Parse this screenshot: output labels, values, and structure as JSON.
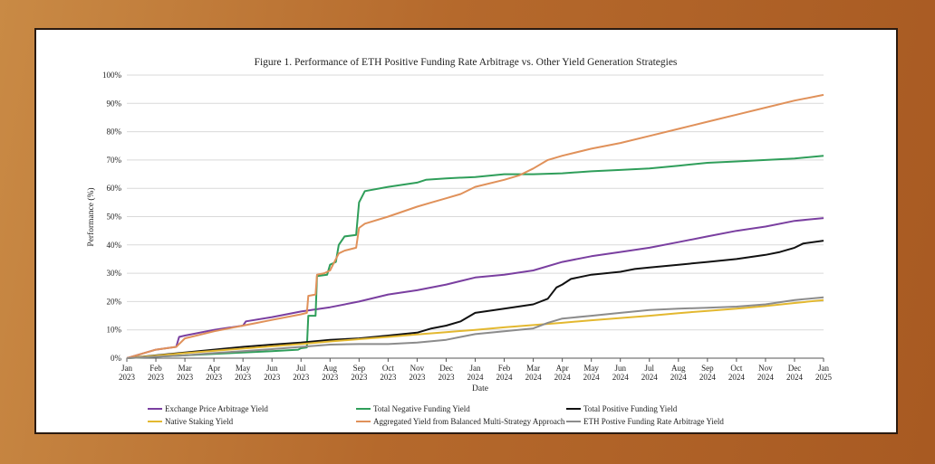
{
  "chart_data": {
    "type": "line",
    "title": "Figure 1. Performance of ETH Positive Funding Rate Arbitrage vs. Other Yield Generation Strategies",
    "xlabel": "Date",
    "ylabel": "Performance (%)",
    "ylim": [
      0,
      100
    ],
    "yticks": [
      "0%",
      "10%",
      "20%",
      "30%",
      "40%",
      "50%",
      "60%",
      "70%",
      "80%",
      "90%",
      "100%"
    ],
    "x": [
      [
        "Jan",
        "2023"
      ],
      [
        "Feb",
        "2023"
      ],
      [
        "Mar",
        "2023"
      ],
      [
        "Apr",
        "2023"
      ],
      [
        "May",
        "2023"
      ],
      [
        "Jun",
        "2023"
      ],
      [
        "Jul",
        "2023"
      ],
      [
        "Aug",
        "2023"
      ],
      [
        "Sep",
        "2023"
      ],
      [
        "Oct",
        "2023"
      ],
      [
        "Nov",
        "2023"
      ],
      [
        "Dec",
        "2023"
      ],
      [
        "Jan",
        "2024"
      ],
      [
        "Feb",
        "2024"
      ],
      [
        "Mar",
        "2024"
      ],
      [
        "Apr",
        "2024"
      ],
      [
        "May",
        "2024"
      ],
      [
        "Jun",
        "2024"
      ],
      [
        "Jul",
        "2024"
      ],
      [
        "Aug",
        "2024"
      ],
      [
        "Sep",
        "2024"
      ],
      [
        "Oct",
        "2024"
      ],
      [
        "Nov",
        "2024"
      ],
      [
        "Dec",
        "2024"
      ],
      [
        "Jan",
        "2025"
      ]
    ],
    "grid": true,
    "legend_position": "bottom",
    "series": [
      {
        "name": "Exchange Price Arbitrage Yield",
        "color": "#7a3fa0",
        "points": [
          [
            0,
            0
          ],
          [
            1,
            3
          ],
          [
            1.7,
            4
          ],
          [
            1.8,
            7.5
          ],
          [
            2,
            8
          ],
          [
            3,
            10
          ],
          [
            4,
            11.5
          ],
          [
            4.1,
            13
          ],
          [
            5,
            14.5
          ],
          [
            6,
            16.5
          ],
          [
            7,
            18
          ],
          [
            8,
            20
          ],
          [
            9,
            22.5
          ],
          [
            10,
            24
          ],
          [
            11,
            26
          ],
          [
            12,
            28.5
          ],
          [
            13,
            29.5
          ],
          [
            14,
            31
          ],
          [
            15,
            34
          ],
          [
            16,
            36
          ],
          [
            17,
            37.5
          ],
          [
            18,
            39
          ],
          [
            19,
            41
          ],
          [
            20,
            43
          ],
          [
            21,
            45
          ],
          [
            22,
            46.5
          ],
          [
            23,
            48.5
          ],
          [
            24,
            49.5
          ]
        ]
      },
      {
        "name": "Total Negative Funding Yield",
        "color": "#2f9e5a",
        "points": [
          [
            0,
            0
          ],
          [
            1,
            0.5
          ],
          [
            2,
            1
          ],
          [
            3,
            1.5
          ],
          [
            4,
            2
          ],
          [
            5,
            2.5
          ],
          [
            5.9,
            3
          ],
          [
            6,
            3.5
          ],
          [
            6.2,
            3.8
          ],
          [
            6.25,
            15
          ],
          [
            6.5,
            15
          ],
          [
            6.55,
            29
          ],
          [
            6.9,
            29.5
          ],
          [
            7,
            33
          ],
          [
            7.2,
            34
          ],
          [
            7.3,
            40
          ],
          [
            7.5,
            43
          ],
          [
            7.9,
            43.5
          ],
          [
            8,
            55
          ],
          [
            8.2,
            59
          ],
          [
            9,
            60.5
          ],
          [
            10,
            62
          ],
          [
            10.3,
            63
          ],
          [
            11,
            63.5
          ],
          [
            12,
            64
          ],
          [
            13,
            65
          ],
          [
            14,
            65
          ],
          [
            15,
            65.3
          ],
          [
            16,
            66
          ],
          [
            17,
            66.5
          ],
          [
            18,
            67
          ],
          [
            19,
            68
          ],
          [
            20,
            69
          ],
          [
            21,
            69.5
          ],
          [
            22,
            70
          ],
          [
            23,
            70.5
          ],
          [
            24,
            71.5
          ]
        ]
      },
      {
        "name": "Total Positive Funding Yield",
        "color": "#111111",
        "points": [
          [
            0,
            0
          ],
          [
            1,
            1
          ],
          [
            2,
            2
          ],
          [
            3,
            3
          ],
          [
            4,
            4
          ],
          [
            5,
            4.8
          ],
          [
            6,
            5.5
          ],
          [
            7,
            6.5
          ],
          [
            8,
            7
          ],
          [
            9,
            8
          ],
          [
            10,
            9
          ],
          [
            10.5,
            10.5
          ],
          [
            11,
            11.5
          ],
          [
            11.5,
            13
          ],
          [
            12,
            16
          ],
          [
            13,
            17.5
          ],
          [
            14,
            19
          ],
          [
            14.5,
            21
          ],
          [
            14.8,
            25
          ],
          [
            15,
            26
          ],
          [
            15.3,
            28
          ],
          [
            16,
            29.5
          ],
          [
            17,
            30.5
          ],
          [
            17.5,
            31.5
          ],
          [
            18,
            32
          ],
          [
            19,
            33
          ],
          [
            20,
            34
          ],
          [
            21,
            35
          ],
          [
            22,
            36.5
          ],
          [
            22.5,
            37.5
          ],
          [
            23,
            39
          ],
          [
            23.3,
            40.5
          ],
          [
            24,
            41.5
          ]
        ]
      },
      {
        "name": "Native Staking Yield",
        "color": "#e3b830",
        "points": [
          [
            0,
            0
          ],
          [
            1,
            0.9
          ],
          [
            2,
            1.8
          ],
          [
            3,
            2.6
          ],
          [
            4,
            3.4
          ],
          [
            5,
            4.2
          ],
          [
            6,
            5
          ],
          [
            7,
            5.9
          ],
          [
            8,
            6.7
          ],
          [
            9,
            7.5
          ],
          [
            10,
            8.4
          ],
          [
            11,
            9.2
          ],
          [
            12,
            10
          ],
          [
            13,
            10.9
          ],
          [
            14,
            11.7
          ],
          [
            15,
            12.5
          ],
          [
            16,
            13.4
          ],
          [
            17,
            14.2
          ],
          [
            18,
            15
          ],
          [
            19,
            15.9
          ],
          [
            20,
            16.7
          ],
          [
            21,
            17.5
          ],
          [
            22,
            18.4
          ],
          [
            23,
            19.5
          ],
          [
            24,
            20.5
          ]
        ]
      },
      {
        "name": "Aggregated Yield from Balanced Multi-Strategy Approach",
        "color": "#e0915a",
        "points": [
          [
            0,
            0
          ],
          [
            1,
            3
          ],
          [
            1.7,
            4
          ],
          [
            2,
            7
          ],
          [
            3,
            9.5
          ],
          [
            4,
            11.5
          ],
          [
            4.5,
            12.5
          ],
          [
            5,
            13.5
          ],
          [
            6,
            15.5
          ],
          [
            6.2,
            16
          ],
          [
            6.25,
            22
          ],
          [
            6.5,
            22.5
          ],
          [
            6.55,
            29.5
          ],
          [
            6.8,
            30
          ],
          [
            7,
            31
          ],
          [
            7.2,
            35
          ],
          [
            7.3,
            37
          ],
          [
            7.5,
            38
          ],
          [
            7.9,
            39
          ],
          [
            8,
            46
          ],
          [
            8.2,
            47.5
          ],
          [
            9,
            50
          ],
          [
            10,
            53.5
          ],
          [
            10.5,
            55
          ],
          [
            11,
            56.5
          ],
          [
            11.5,
            58
          ],
          [
            12,
            60.5
          ],
          [
            13,
            63
          ],
          [
            13.5,
            64.5
          ],
          [
            14,
            67
          ],
          [
            14.5,
            70
          ],
          [
            15,
            71.5
          ],
          [
            16,
            74
          ],
          [
            17,
            76
          ],
          [
            18,
            78.5
          ],
          [
            19,
            81
          ],
          [
            20,
            83.5
          ],
          [
            21,
            86
          ],
          [
            22,
            88.5
          ],
          [
            23,
            91
          ],
          [
            24,
            93
          ]
        ]
      },
      {
        "name": "ETH Postive Funding Rate Arbitrage Yield",
        "color": "#8c8c8c",
        "points": [
          [
            0,
            0
          ],
          [
            1,
            0.5
          ],
          [
            2,
            1
          ],
          [
            3,
            1.8
          ],
          [
            4,
            2.5
          ],
          [
            5,
            3.2
          ],
          [
            6,
            4
          ],
          [
            7,
            4.8
          ],
          [
            8,
            5
          ],
          [
            9,
            5
          ],
          [
            10,
            5.5
          ],
          [
            11,
            6.5
          ],
          [
            11.5,
            7.5
          ],
          [
            12,
            8.5
          ],
          [
            13,
            9.5
          ],
          [
            14,
            10.5
          ],
          [
            14.5,
            12.5
          ],
          [
            15,
            14
          ],
          [
            16,
            15
          ],
          [
            17,
            16
          ],
          [
            18,
            17
          ],
          [
            19,
            17.5
          ],
          [
            20,
            17.8
          ],
          [
            21,
            18.2
          ],
          [
            22,
            19
          ],
          [
            23,
            20.5
          ],
          [
            24,
            21.5
          ]
        ]
      }
    ]
  }
}
